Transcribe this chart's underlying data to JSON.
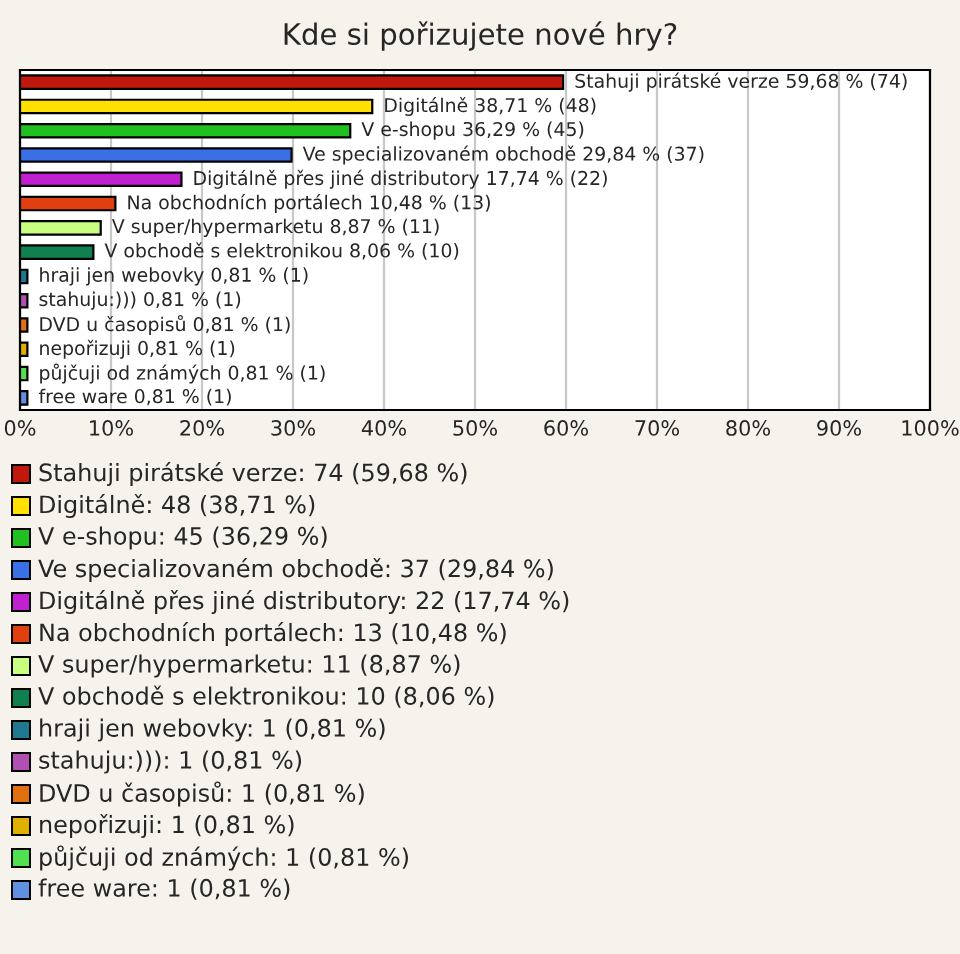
{
  "chart_data": {
    "type": "bar",
    "orientation": "horizontal",
    "title": "Kde si pořizujete nové hry?",
    "categories": [
      "Stahuji pirátské verze",
      "Digitálně",
      "V e-shopu",
      "Ve specializovaném obchodě",
      "Digitálně přes jiné distributory",
      "Na obchodních portálech",
      "V super/hypermarketu",
      "V obchodě s elektronikou",
      "hraji jen webovky",
      "stahuju:)))",
      "DVD u časopisů",
      "nepořizuji",
      "půjčuji od známých",
      "free ware"
    ],
    "values": [
      59.68,
      38.71,
      36.29,
      29.84,
      17.74,
      10.48,
      8.87,
      8.06,
      0.81,
      0.81,
      0.81,
      0.81,
      0.81,
      0.81
    ],
    "value_labels": [
      "59,68 % (74)",
      "38,71 % (48)",
      "36,29 % (45)",
      "29,84 % (37)",
      "17,74 % (22)",
      "10,48 % (13)",
      "8,87 % (11)",
      "8,06 % (10)",
      "0,81 % (1)",
      "0,81 % (1)",
      "0,81 % (1)",
      "0,81 % (1)",
      "0,81 % (1)",
      "0,81 % (1)"
    ],
    "colors": [
      "#c0180c",
      "#ffe000",
      "#20c020",
      "#3b6fe6",
      "#c020d0",
      "#e04010",
      "#c8ff80",
      "#108050",
      "#207890",
      "#b050b0",
      "#e07010",
      "#e0b000",
      "#50e050",
      "#6090e0"
    ],
    "xlim": [
      0,
      100
    ],
    "xticks": [
      {
        "value": 0,
        "label": "0%"
      },
      {
        "value": 10,
        "label": "10%"
      },
      {
        "value": 20,
        "label": "20%"
      },
      {
        "value": 30,
        "label": "30%"
      },
      {
        "value": 40,
        "label": "40%"
      },
      {
        "value": 50,
        "label": "50%"
      },
      {
        "value": 60,
        "label": "60%"
      },
      {
        "value": 70,
        "label": "70%"
      },
      {
        "value": 80,
        "label": "80%"
      },
      {
        "value": 90,
        "label": "90%"
      },
      {
        "value": 100,
        "label": "100%"
      }
    ],
    "grid": "x",
    "tick_labels": "x",
    "annotations": [
      "Stahuji pirátské verze: 74 (59,68 %)",
      "Digitálně: 48 (38,71 %)",
      "V e-shopu: 45 (36,29 %)",
      "Ve specializovaném obchodě: 37 (29,84 %)",
      "Digitálně přes jiné distributory: 22 (17,74 %)",
      "Na obchodních portálech: 13 (10,48 %)",
      "V super/hypermarketu: 11 (8,87 %)",
      "V obchodě s elektronikou: 10 (8,06 %)",
      "hraji jen webovky: 1 (0,81 %)",
      "stahuju:))): 1 (0,81 %)",
      "DVD u časopisů: 1 (0,81 %)",
      "nepořizuji: 1 (0,81 %)",
      "půjčuji od známých: 1 (0,81 %)",
      "free ware: 1 (0,81 %)"
    ]
  }
}
